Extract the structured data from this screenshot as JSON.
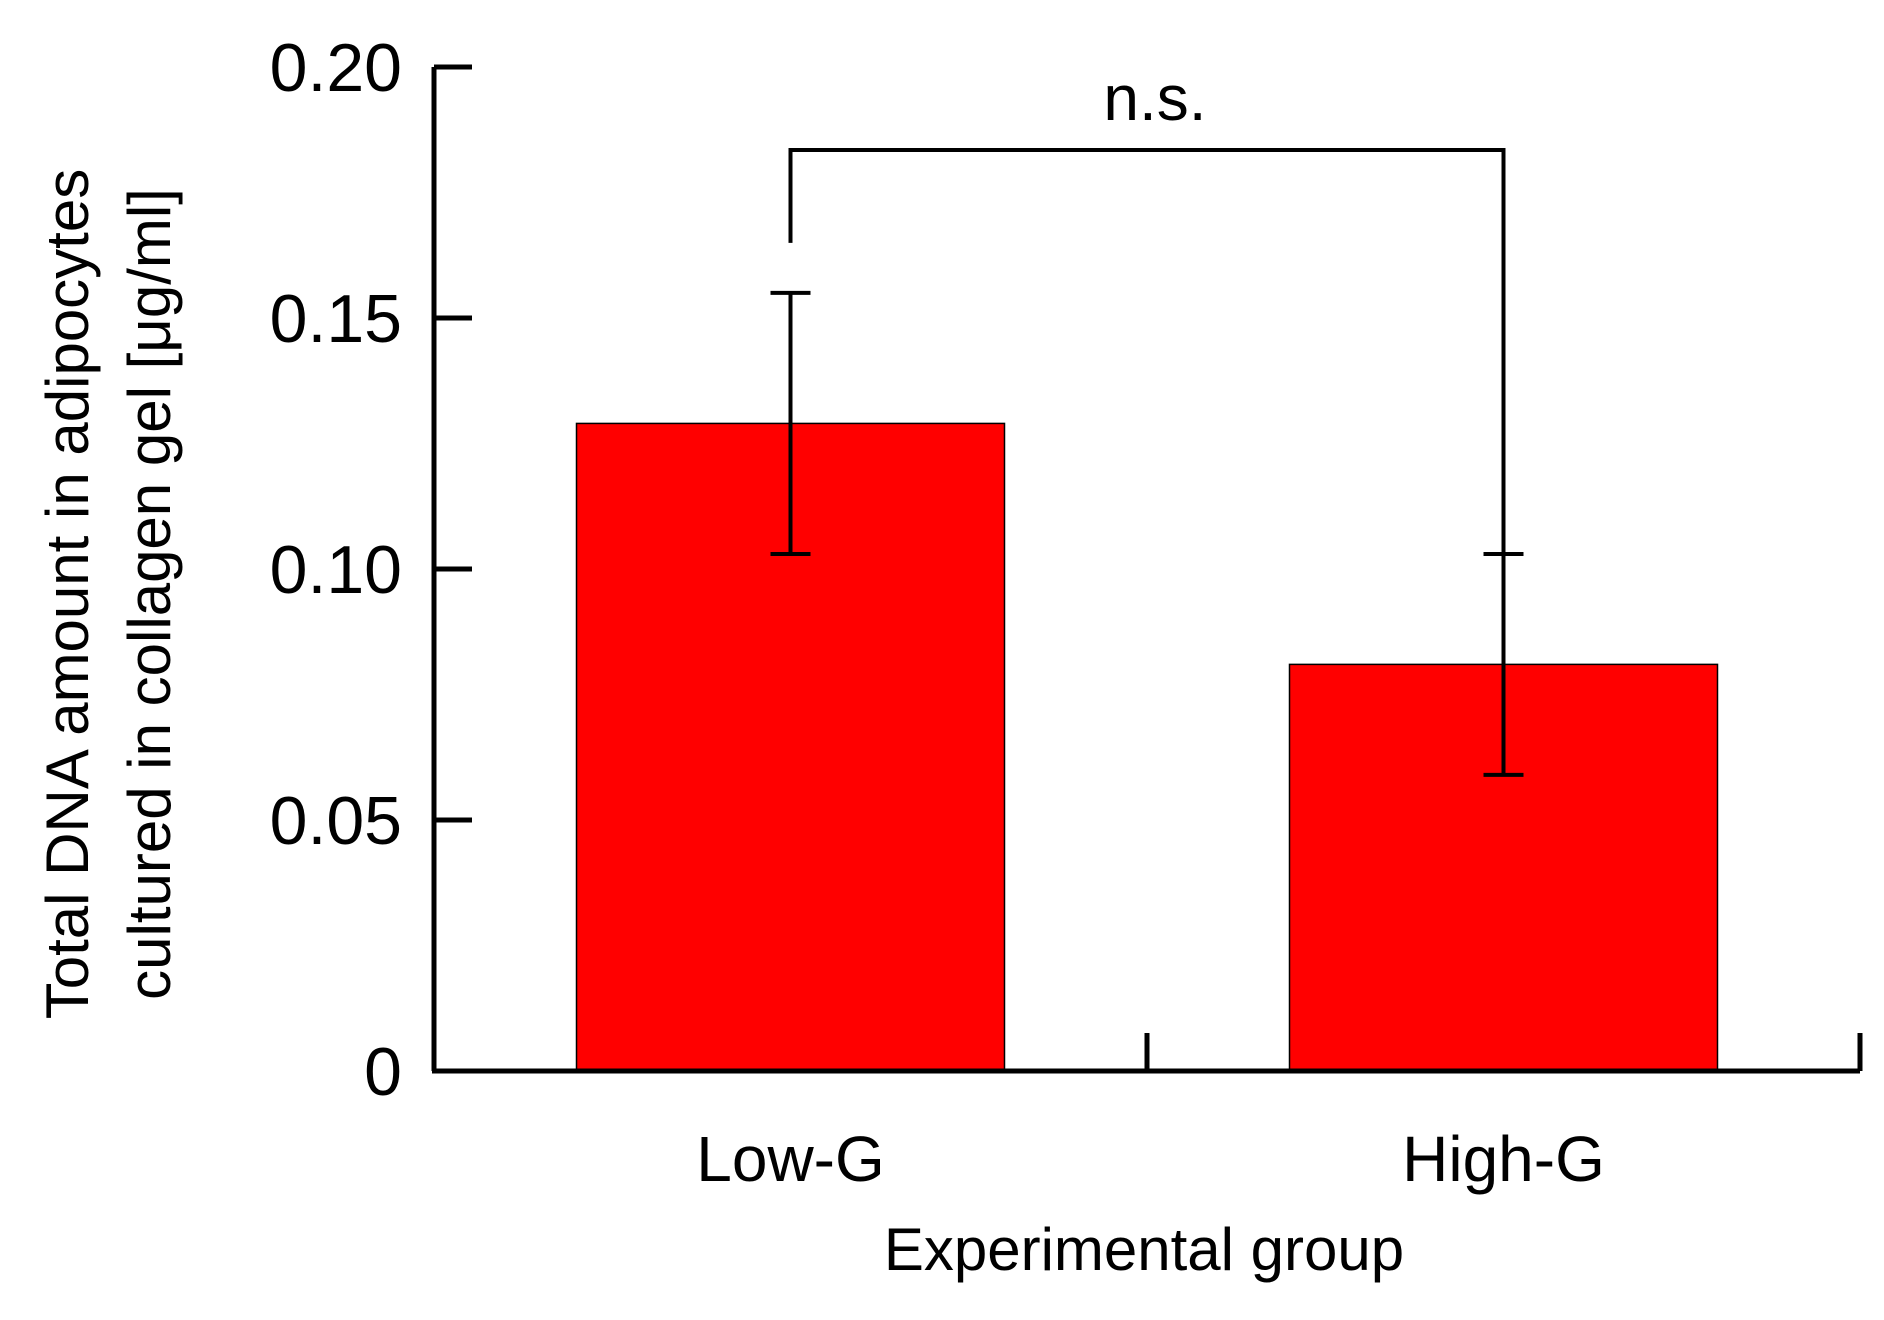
{
  "chart_data": {
    "type": "bar",
    "categories": [
      "Low-G",
      "High-G"
    ],
    "values": [
      0.129,
      0.081
    ],
    "errors": [
      0.026,
      0.022
    ],
    "yticks": [
      "0",
      "0.05",
      "0.10",
      "0.15",
      "0.20"
    ],
    "ytick_values": [
      0,
      0.05,
      0.1,
      0.15,
      0.2
    ],
    "ylim": [
      0,
      0.2
    ],
    "xlabel": "Experimental group",
    "ylabel_lines": [
      "Total DNA amount in adipocytes",
      "cultured in collagen gel [μg/ml]"
    ],
    "annotation": {
      "text": "n.s.",
      "between": [
        "Low-G",
        "High-G"
      ]
    },
    "bar_color": "#ff0000",
    "grid": false,
    "legend": "none"
  }
}
